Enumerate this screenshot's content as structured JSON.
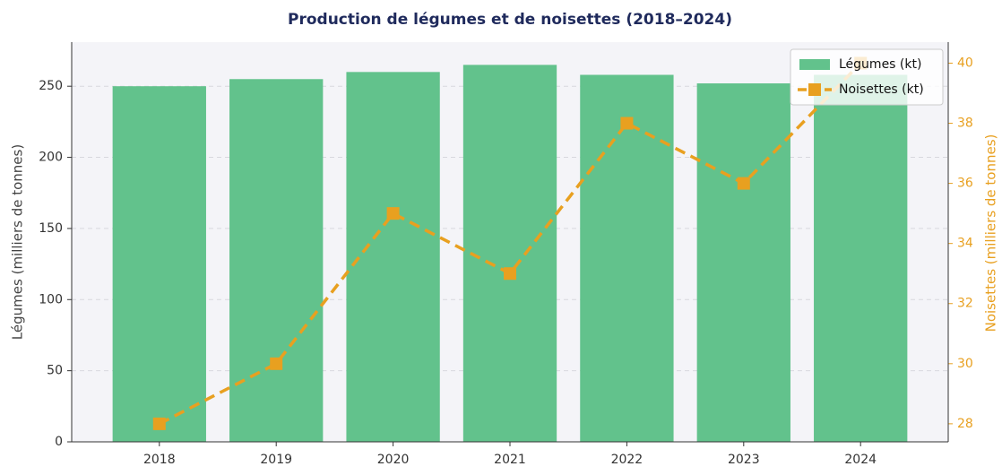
{
  "chart_data": {
    "type": "bar_line",
    "title": "Production de légumes et de noisettes (2018–2024)",
    "categories": [
      "2018",
      "2019",
      "2020",
      "2021",
      "2022",
      "2023",
      "2024"
    ],
    "series": [
      {
        "name": "Légumes (kt)",
        "type": "bar",
        "color": "#62c28c",
        "values": [
          250,
          255,
          260,
          265,
          258,
          252,
          258
        ]
      },
      {
        "name": "Noisettes (kt)",
        "type": "line",
        "axis": "y2",
        "color": "#e8a020",
        "values": [
          28,
          30,
          35,
          33,
          38,
          36,
          40
        ]
      }
    ],
    "ylabel": "Légumes (milliers de tonnes)",
    "y2label": "Noisettes (milliers de tonnes)",
    "ylim": [
      0,
      281
    ],
    "yticks": [
      0,
      50,
      100,
      150,
      200,
      250
    ],
    "y2lim": [
      27.4,
      40.7
    ],
    "y2ticks": [
      28,
      30,
      32,
      34,
      36,
      38,
      40
    ],
    "grid": true,
    "legend": "upper right"
  }
}
